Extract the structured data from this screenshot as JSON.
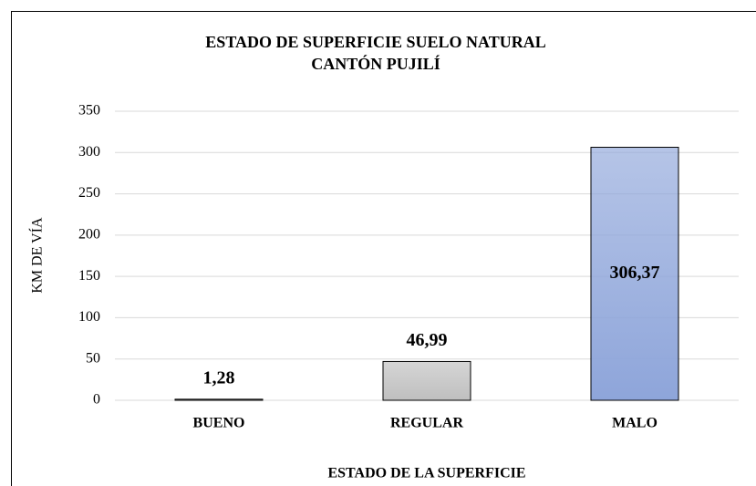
{
  "chart_data": {
    "type": "bar",
    "title": [
      "ESTADO DE SUPERFICIE SUELO NATURAL",
      "CANTÓN PUJILÍ"
    ],
    "categories": [
      "BUENO",
      "REGULAR",
      "MALO"
    ],
    "values": [
      1.28,
      46.99,
      306.37
    ],
    "value_labels": [
      "1,28",
      "46,99",
      "306,37"
    ],
    "colors": [
      "#bfbfbf",
      "#bfbfbf",
      "#8ea5da"
    ],
    "x_label": "ESTADO DE LA SUPERFICIE",
    "y_label": "KM DE VÍA",
    "ylim": [
      0,
      350
    ],
    "yticks": [
      0,
      50,
      100,
      150,
      200,
      250,
      300,
      350
    ],
    "grid": true
  }
}
